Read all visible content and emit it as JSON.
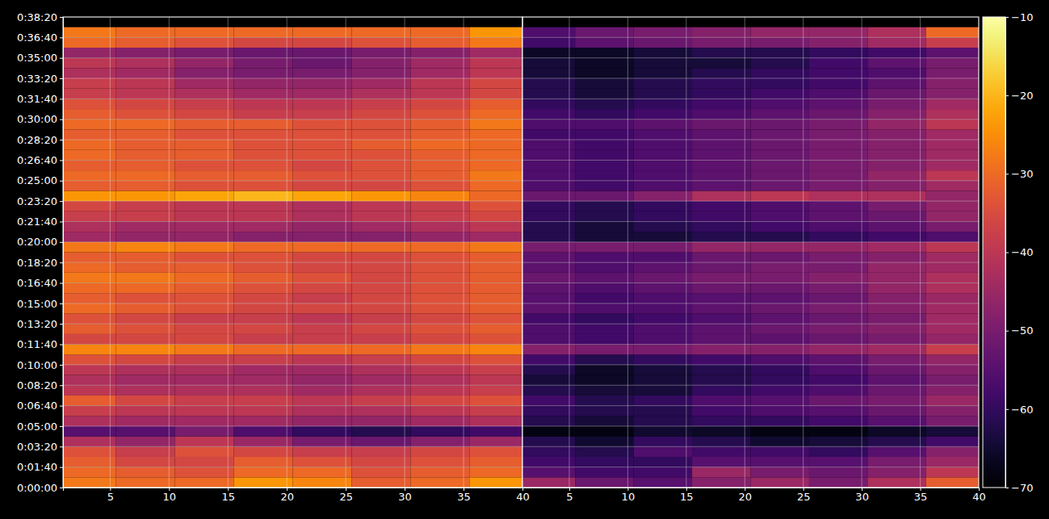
{
  "chart_data": {
    "type": "heatmap",
    "grid": true,
    "ylim": [
      0,
      2300
    ],
    "yticks": [
      {
        "value": 0,
        "label": "0:00:00"
      },
      {
        "value": 100,
        "label": "0:01:40"
      },
      {
        "value": 200,
        "label": "0:03:20"
      },
      {
        "value": 300,
        "label": "0:05:00"
      },
      {
        "value": 400,
        "label": "0:06:40"
      },
      {
        "value": 500,
        "label": "0:08:20"
      },
      {
        "value": 600,
        "label": "0:10:00"
      },
      {
        "value": 700,
        "label": "0:11:40"
      },
      {
        "value": 800,
        "label": "0:13:20"
      },
      {
        "value": 900,
        "label": "0:15:00"
      },
      {
        "value": 1000,
        "label": "0:16:40"
      },
      {
        "value": 1100,
        "label": "0:18:20"
      },
      {
        "value": 1200,
        "label": "0:20:00"
      },
      {
        "value": 1300,
        "label": "0:21:40"
      },
      {
        "value": 1400,
        "label": "0:23:20"
      },
      {
        "value": 1500,
        "label": "0:25:00"
      },
      {
        "value": 1600,
        "label": "0:26:40"
      },
      {
        "value": 1700,
        "label": "0:28:20"
      },
      {
        "value": 1800,
        "label": "0:30:00"
      },
      {
        "value": 1900,
        "label": "0:31:40"
      },
      {
        "value": 2000,
        "label": "0:33:20"
      },
      {
        "value": 2100,
        "label": "0:35:00"
      },
      {
        "value": 2200,
        "label": "0:36:40"
      },
      {
        "value": 2300,
        "label": "0:38:20"
      }
    ],
    "y_edges": [
      0,
      50,
      100,
      150,
      200,
      250,
      300,
      350,
      400,
      450,
      500,
      550,
      600,
      650,
      700,
      750,
      800,
      850,
      900,
      950,
      1000,
      1050,
      1100,
      1150,
      1200,
      1250,
      1300,
      1350,
      1400,
      1450,
      1500,
      1550,
      1600,
      1650,
      1700,
      1750,
      1800,
      1850,
      1900,
      1950,
      2000,
      2050,
      2100,
      2150,
      2200,
      2250
    ],
    "colorbar": {
      "range": [
        -70,
        -10
      ],
      "ticks": [
        {
          "value": -70,
          "label": "−70"
        },
        {
          "value": -60,
          "label": "−60"
        },
        {
          "value": -50,
          "label": "−50"
        },
        {
          "value": -40,
          "label": "−40"
        },
        {
          "value": -30,
          "label": "−30"
        },
        {
          "value": -20,
          "label": "−20"
        },
        {
          "value": -10,
          "label": "−10"
        }
      ]
    },
    "panels": [
      {
        "tick_labels": true,
        "xlim": [
          1,
          40
        ],
        "xticks": [
          5,
          10,
          15,
          20,
          25,
          30,
          35,
          40
        ],
        "x_edges": [
          0.5,
          5.5,
          10.5,
          15.5,
          20.5,
          25.5,
          30.5,
          35.5,
          40.5
        ],
        "cells": [
          [
            -28,
            -30,
            -30,
            -24,
            -26,
            -32,
            -30,
            -24
          ],
          [
            -30,
            -32,
            -34,
            -30,
            -30,
            -34,
            -32,
            -30
          ],
          [
            -32,
            -36,
            -36,
            -32,
            -34,
            -36,
            -34,
            -32
          ],
          [
            -34,
            -38,
            -34,
            -36,
            -38,
            -38,
            -36,
            -34
          ],
          [
            -42,
            -46,
            -40,
            -45,
            -50,
            -52,
            -48,
            -45
          ],
          [
            -55,
            -55,
            -50,
            -56,
            -60,
            -62,
            -60,
            -58
          ],
          [
            -42,
            -44,
            -44,
            -44,
            -46,
            -46,
            -44,
            -42
          ],
          [
            -38,
            -40,
            -40,
            -40,
            -42,
            -42,
            -40,
            -38
          ],
          [
            -32,
            -36,
            -38,
            -38,
            -40,
            -38,
            -36,
            -34
          ],
          [
            -40,
            -42,
            -42,
            -42,
            -44,
            -42,
            -40,
            -38
          ],
          [
            -42,
            -44,
            -44,
            -44,
            -46,
            -44,
            -42,
            -40
          ],
          [
            -40,
            -42,
            -42,
            -44,
            -44,
            -42,
            -40,
            -38
          ],
          [
            -34,
            -36,
            -38,
            -38,
            -40,
            -38,
            -36,
            -34
          ],
          [
            -26,
            -26,
            -28,
            -30,
            -30,
            -30,
            -28,
            -26
          ],
          [
            -36,
            -36,
            -36,
            -38,
            -38,
            -38,
            -36,
            -34
          ],
          [
            -32,
            -34,
            -36,
            -36,
            -38,
            -36,
            -34,
            -32
          ],
          [
            -34,
            -36,
            -38,
            -38,
            -40,
            -38,
            -36,
            -34
          ],
          [
            -30,
            -32,
            -34,
            -36,
            -36,
            -36,
            -34,
            -32
          ],
          [
            -32,
            -34,
            -34,
            -36,
            -38,
            -36,
            -34,
            -32
          ],
          [
            -30,
            -30,
            -32,
            -34,
            -36,
            -36,
            -34,
            -32
          ],
          [
            -28,
            -28,
            -30,
            -32,
            -34,
            -36,
            -34,
            -32
          ],
          [
            -30,
            -32,
            -32,
            -34,
            -36,
            -36,
            -34,
            -32
          ],
          [
            -32,
            -32,
            -34,
            -34,
            -36,
            -36,
            -34,
            -32
          ],
          [
            -28,
            -26,
            -28,
            -30,
            -30,
            -30,
            -30,
            -28
          ],
          [
            -44,
            -46,
            -46,
            -48,
            -48,
            -48,
            -46,
            -44
          ],
          [
            -42,
            -44,
            -44,
            -44,
            -46,
            -44,
            -42,
            -40
          ],
          [
            -38,
            -38,
            -40,
            -40,
            -42,
            -40,
            -38,
            -36
          ],
          [
            -36,
            -38,
            -40,
            -40,
            -42,
            -40,
            -38,
            -34
          ],
          [
            -24,
            -24,
            -22,
            -20,
            -22,
            -24,
            -26,
            -30
          ],
          [
            -32,
            -32,
            -34,
            -34,
            -36,
            -36,
            -34,
            -30
          ],
          [
            -30,
            -30,
            -32,
            -32,
            -34,
            -34,
            -32,
            -28
          ],
          [
            -32,
            -32,
            -34,
            -34,
            -36,
            -34,
            -32,
            -30
          ],
          [
            -30,
            -32,
            -32,
            -34,
            -34,
            -34,
            -32,
            -30
          ],
          [
            -30,
            -32,
            -32,
            -34,
            -34,
            -32,
            -30,
            -30
          ],
          [
            -32,
            -32,
            -34,
            -34,
            -34,
            -34,
            -32,
            -30
          ],
          [
            -30,
            -30,
            -32,
            -32,
            -34,
            -34,
            -32,
            -28
          ],
          [
            -32,
            -34,
            -36,
            -38,
            -38,
            -36,
            -34,
            -30
          ],
          [
            -34,
            -36,
            -38,
            -40,
            -40,
            -38,
            -36,
            -32
          ],
          [
            -38,
            -40,
            -42,
            -44,
            -44,
            -42,
            -40,
            -36
          ],
          [
            -38,
            -40,
            -44,
            -46,
            -46,
            -44,
            -40,
            -36
          ],
          [
            -42,
            -44,
            -48,
            -50,
            -50,
            -48,
            -44,
            -40
          ],
          [
            -40,
            -42,
            -46,
            -50,
            -52,
            -48,
            -44,
            -40
          ],
          [
            -46,
            -48,
            -50,
            -52,
            -52,
            -50,
            -48,
            -44
          ],
          [
            -30,
            -32,
            -34,
            -36,
            -36,
            -34,
            -32,
            -28
          ],
          [
            -28,
            -30,
            -30,
            -30,
            -30,
            -30,
            -30,
            -24
          ]
        ]
      },
      {
        "tick_labels": "x",
        "xlim": [
          1,
          40
        ],
        "xticks": [
          5,
          10,
          15,
          20,
          25,
          30,
          35,
          40
        ],
        "x_edges": [
          0.5,
          5.5,
          10.5,
          15.5,
          20.5,
          25.5,
          30.5,
          35.5,
          40.5
        ],
        "cells": [
          [
            -45,
            -52,
            -55,
            -48,
            -45,
            -50,
            -42,
            -32
          ],
          [
            -55,
            -58,
            -58,
            -45,
            -50,
            -52,
            -48,
            -40
          ],
          [
            -58,
            -60,
            -60,
            -55,
            -55,
            -55,
            -50,
            -45
          ],
          [
            -60,
            -62,
            -56,
            -58,
            -58,
            -60,
            -55,
            -48
          ],
          [
            -62,
            -65,
            -60,
            -62,
            -65,
            -64,
            -62,
            -58
          ],
          [
            -68,
            -68,
            -65,
            -66,
            -68,
            -68,
            -66,
            -64
          ],
          [
            -62,
            -64,
            -62,
            -60,
            -60,
            -58,
            -55,
            -50
          ],
          [
            -60,
            -62,
            -62,
            -58,
            -56,
            -55,
            -52,
            -48
          ],
          [
            -58,
            -62,
            -60,
            -56,
            -55,
            -52,
            -50,
            -45
          ],
          [
            -62,
            -64,
            -64,
            -60,
            -58,
            -56,
            -52,
            -48
          ],
          [
            -64,
            -66,
            -64,
            -62,
            -60,
            -58,
            -54,
            -50
          ],
          [
            -62,
            -66,
            -64,
            -62,
            -60,
            -56,
            -52,
            -48
          ],
          [
            -58,
            -62,
            -60,
            -58,
            -56,
            -54,
            -50,
            -46
          ],
          [
            -48,
            -50,
            -50,
            -48,
            -48,
            -46,
            -44,
            -38
          ],
          [
            -56,
            -58,
            -56,
            -54,
            -54,
            -52,
            -50,
            -46
          ],
          [
            -56,
            -58,
            -56,
            -54,
            -52,
            -50,
            -48,
            -44
          ],
          [
            -58,
            -60,
            -58,
            -56,
            -54,
            -52,
            -50,
            -44
          ],
          [
            -54,
            -56,
            -56,
            -54,
            -52,
            -50,
            -48,
            -44
          ],
          [
            -55,
            -58,
            -56,
            -55,
            -54,
            -52,
            -48,
            -45
          ],
          [
            -54,
            -56,
            -54,
            -52,
            -52,
            -50,
            -46,
            -42
          ],
          [
            -52,
            -54,
            -52,
            -50,
            -50,
            -48,
            -46,
            -42
          ],
          [
            -54,
            -56,
            -54,
            -52,
            -50,
            -50,
            -46,
            -44
          ],
          [
            -54,
            -56,
            -56,
            -52,
            -52,
            -50,
            -48,
            -44
          ],
          [
            -50,
            -50,
            -50,
            -46,
            -46,
            -46,
            -44,
            -40
          ],
          [
            -62,
            -64,
            -64,
            -62,
            -62,
            -60,
            -58,
            -56
          ],
          [
            -62,
            -64,
            -62,
            -60,
            -58,
            -56,
            -54,
            -50
          ],
          [
            -60,
            -62,
            -60,
            -58,
            -56,
            -54,
            -52,
            -46
          ],
          [
            -60,
            -62,
            -60,
            -58,
            -56,
            -54,
            -50,
            -46
          ],
          [
            -52,
            -52,
            -48,
            -42,
            -40,
            -42,
            -42,
            -46
          ],
          [
            -56,
            -58,
            -56,
            -54,
            -52,
            -50,
            -48,
            -44
          ],
          [
            -56,
            -58,
            -56,
            -54,
            -52,
            -50,
            -46,
            -40
          ],
          [
            -56,
            -58,
            -56,
            -54,
            -52,
            -50,
            -48,
            -44
          ],
          [
            -56,
            -58,
            -56,
            -54,
            -52,
            -50,
            -48,
            -44
          ],
          [
            -56,
            -58,
            -56,
            -54,
            -52,
            -50,
            -48,
            -44
          ],
          [
            -58,
            -58,
            -56,
            -54,
            -52,
            -50,
            -48,
            -44
          ],
          [
            -56,
            -56,
            -54,
            -52,
            -52,
            -50,
            -46,
            -40
          ],
          [
            -58,
            -60,
            -58,
            -56,
            -54,
            -52,
            -48,
            -42
          ],
          [
            -60,
            -62,
            -60,
            -58,
            -56,
            -54,
            -50,
            -44
          ],
          [
            -62,
            -64,
            -62,
            -60,
            -58,
            -56,
            -52,
            -48
          ],
          [
            -62,
            -64,
            -62,
            -60,
            -60,
            -58,
            -54,
            -48
          ],
          [
            -64,
            -66,
            -64,
            -62,
            -60,
            -58,
            -56,
            -50
          ],
          [
            -64,
            -66,
            -64,
            -64,
            -62,
            -58,
            -54,
            -50
          ],
          [
            -66,
            -66,
            -64,
            -62,
            -62,
            -60,
            -58,
            -54
          ],
          [
            -58,
            -54,
            -52,
            -50,
            -50,
            -48,
            -44,
            -38
          ],
          [
            -56,
            -52,
            -50,
            -48,
            -46,
            -46,
            -42,
            -30
          ]
        ]
      }
    ]
  }
}
